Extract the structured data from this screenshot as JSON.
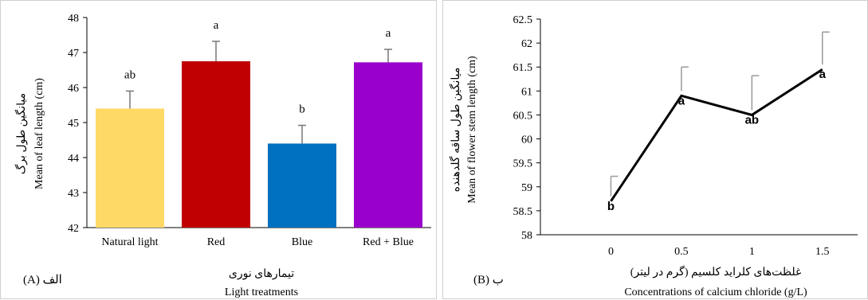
{
  "chart_data": [
    {
      "type": "bar",
      "panel_label": "(A) الف",
      "ylabel_fa": "میانگین طول برگ",
      "ylabel": "Mean of leaf length (cm)",
      "xlabel_fa": "تیمارهای نوری",
      "xlabel": "Light treatments",
      "ylim": [
        42,
        48
      ],
      "yticks": [
        42,
        43,
        44,
        45,
        46,
        47,
        48
      ],
      "categories": [
        "Natural light",
        "Red",
        "Blue",
        "Red + Blue"
      ],
      "values": [
        45.4,
        46.75,
        44.4,
        46.72
      ],
      "errors": [
        0.5,
        0.57,
        0.52,
        0.37
      ],
      "letters": [
        "ab",
        "a",
        "b",
        "a"
      ],
      "colors": [
        "#FFD966",
        "#C00000",
        "#0070C0",
        "#9900CC"
      ],
      "grid": false
    },
    {
      "type": "line",
      "panel_label": "(B) ب",
      "ylabel_fa": "میانگین طول ساقه گلدهنده",
      "ylabel": "Mean of flower stem length (cm)",
      "xlabel_fa": "غلظت‌های کلراید کلسیم (گرم در لیتر)",
      "xlabel": "Concentrations of calcium chloride (g/L)",
      "ylim": [
        58,
        62.5
      ],
      "yticks": [
        58,
        58.5,
        59,
        59.5,
        60,
        60.5,
        61,
        61.5,
        62,
        62.5
      ],
      "x": [
        0,
        0.5,
        1,
        1.5
      ],
      "xticks": [
        "0",
        "0.5",
        "1",
        "1.5"
      ],
      "values": [
        58.7,
        60.9,
        60.5,
        61.45
      ],
      "errors": [
        0.52,
        0.6,
        0.82,
        0.78
      ],
      "letters": [
        "b",
        "a",
        "ab",
        "a"
      ],
      "grid": false
    }
  ]
}
